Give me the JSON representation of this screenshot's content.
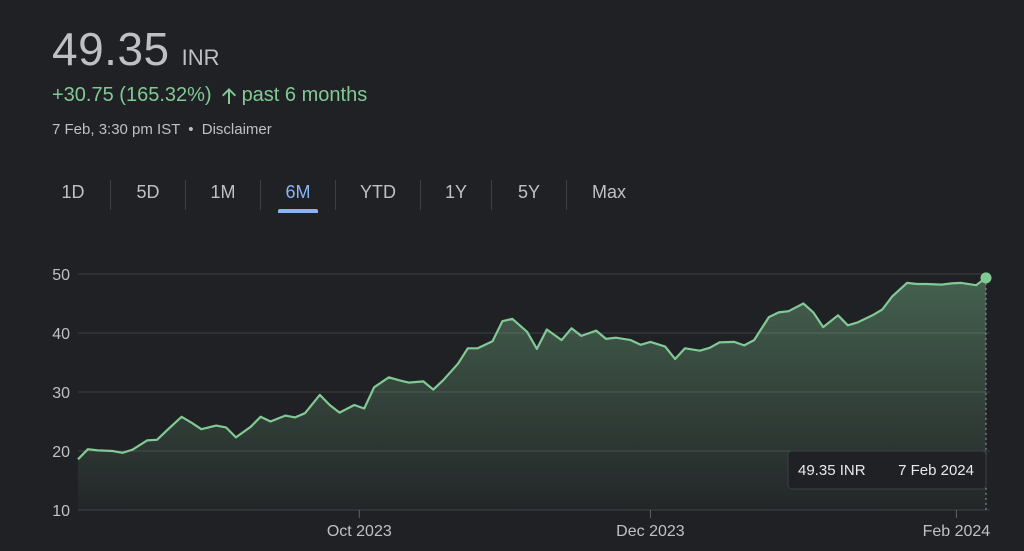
{
  "quote": {
    "price": "49.35",
    "currency": "INR",
    "change": "+30.75 (165.32%)",
    "period": "past 6 months",
    "timestamp": "7 Feb, 3:30 pm IST",
    "separator": "•",
    "disclaimer": "Disclaimer",
    "arrow_icon": "arrow-up-icon",
    "up_color": "#81c995"
  },
  "tabs": [
    {
      "label": "1D",
      "active": false
    },
    {
      "label": "5D",
      "active": false
    },
    {
      "label": "1M",
      "active": false
    },
    {
      "label": "6M",
      "active": true
    },
    {
      "label": "YTD",
      "active": false
    },
    {
      "label": "1Y",
      "active": false
    },
    {
      "label": "5Y",
      "active": false
    },
    {
      "label": "Max",
      "active": false
    }
  ],
  "chart_data": {
    "type": "area",
    "ylim": [
      10,
      50
    ],
    "y_ticks": [
      10,
      20,
      30,
      40,
      50
    ],
    "x_ticks": [
      {
        "label": "Oct 2023",
        "date": "2023-10-03"
      },
      {
        "label": "Dec 2023",
        "date": "2023-12-01"
      },
      {
        "label": "Feb 2024",
        "date": "2024-02-01"
      }
    ],
    "grid": true,
    "line_color": "#81c995",
    "series": [
      {
        "x": [
          "2023-08-07",
          "2023-08-09",
          "2023-08-11",
          "2023-08-14",
          "2023-08-16",
          "2023-08-18",
          "2023-08-21",
          "2023-08-23",
          "2023-08-25",
          "2023-08-28",
          "2023-08-30",
          "2023-09-01",
          "2023-09-04",
          "2023-09-06",
          "2023-09-08",
          "2023-09-11",
          "2023-09-13",
          "2023-09-15",
          "2023-09-18",
          "2023-09-20",
          "2023-09-22",
          "2023-09-25",
          "2023-09-27",
          "2023-09-29",
          "2023-10-02",
          "2023-10-04",
          "2023-10-06",
          "2023-10-09",
          "2023-10-11",
          "2023-10-13",
          "2023-10-16",
          "2023-10-18",
          "2023-10-20",
          "2023-10-23",
          "2023-10-25",
          "2023-10-27",
          "2023-10-30",
          "2023-11-01",
          "2023-11-03",
          "2023-11-06",
          "2023-11-08",
          "2023-11-10",
          "2023-11-13",
          "2023-11-15",
          "2023-11-17",
          "2023-11-20",
          "2023-11-22",
          "2023-11-24",
          "2023-11-27",
          "2023-11-29",
          "2023-12-01",
          "2023-12-04",
          "2023-12-06",
          "2023-12-08",
          "2023-12-11",
          "2023-12-13",
          "2023-12-15",
          "2023-12-18",
          "2023-12-20",
          "2023-12-22",
          "2023-12-25",
          "2023-12-27",
          "2023-12-29",
          "2024-01-01",
          "2024-01-03",
          "2024-01-05",
          "2024-01-08",
          "2024-01-10",
          "2024-01-12",
          "2024-01-15",
          "2024-01-17",
          "2024-01-19",
          "2024-01-22",
          "2024-01-24",
          "2024-01-26",
          "2024-01-29",
          "2024-01-31",
          "2024-02-02",
          "2024-02-05",
          "2024-02-07"
        ],
        "values": [
          18.6,
          20.3,
          20.1,
          20.0,
          19.7,
          20.2,
          21.8,
          21.9,
          23.5,
          25.8,
          24.8,
          23.7,
          24.3,
          24.0,
          22.3,
          24.1,
          25.8,
          25.0,
          26.0,
          25.7,
          26.4,
          29.5,
          27.8,
          26.5,
          27.8,
          27.2,
          30.8,
          32.5,
          32.0,
          31.6,
          31.8,
          30.4,
          32.0,
          34.8,
          37.4,
          37.4,
          38.6,
          42.0,
          42.4,
          40.2,
          37.3,
          40.6,
          38.8,
          40.8,
          39.5,
          40.4,
          39.0,
          39.2,
          38.8,
          38.0,
          38.5,
          37.7,
          35.6,
          37.4,
          37.0,
          37.5,
          38.4,
          38.5,
          37.9,
          38.8,
          42.7,
          43.5,
          43.7,
          45.0,
          43.5,
          41.0,
          43.0,
          41.3,
          41.8,
          43.0,
          44.0,
          46.2,
          48.5,
          48.3,
          48.3,
          48.2,
          48.4,
          48.5,
          48.1,
          49.35
        ]
      }
    ],
    "tooltip": {
      "value": "49.35 INR",
      "date": "7 Feb 2024"
    }
  }
}
